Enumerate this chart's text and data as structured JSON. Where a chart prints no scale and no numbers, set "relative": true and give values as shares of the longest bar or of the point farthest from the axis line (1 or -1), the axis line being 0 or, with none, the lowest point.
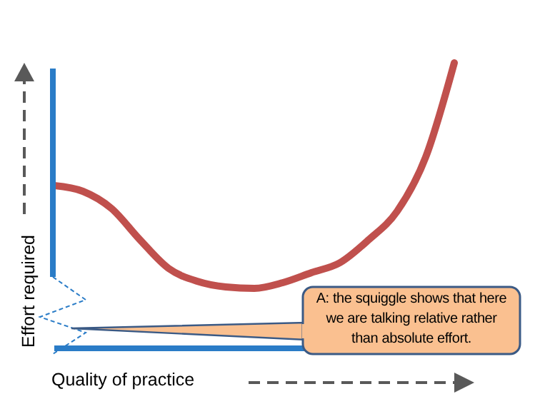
{
  "chart_data": {
    "type": "line",
    "relative": true,
    "xlabel": "Quality of practice",
    "ylabel": "Effort required",
    "categories": [
      null,
      null,
      null,
      null,
      null,
      null,
      null,
      null,
      null,
      null,
      null,
      null,
      null,
      null,
      null
    ],
    "series": [
      {
        "color": "#c0504d",
        "values": [
          0.57,
          0.55,
          0.49,
          0.38,
          0.28,
          0.235,
          0.215,
          0.21,
          0.23,
          0.265,
          0.3,
          0.38,
          0.48,
          0.67,
          1.0
        ]
      }
    ],
    "annotations": [
      "A: the squiggle shows that here we are talking relative rather than absolute effort."
    ],
    "marker": "none",
    "line_style": "solid",
    "grid": false,
    "legend": false
  }
}
